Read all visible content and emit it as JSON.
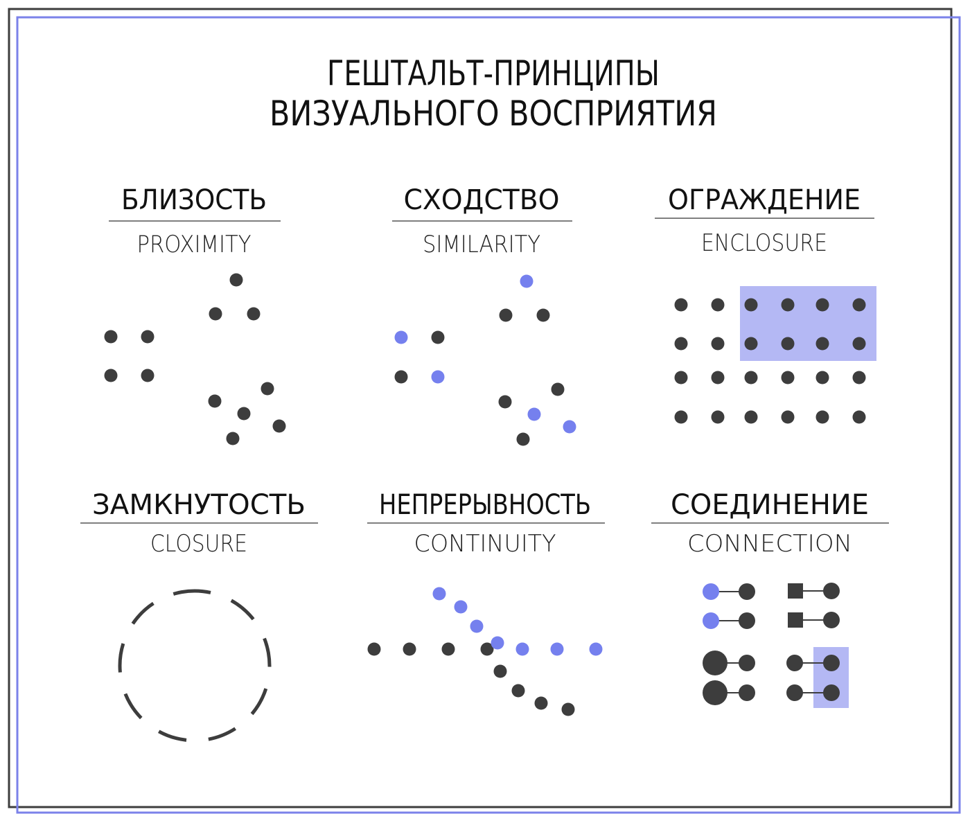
{
  "title": {
    "line1": "ГЕШТАЛЬТ-ПРИНЦИПЫ",
    "line2": "ВИЗУАЛЬНОГО ВОСПРИЯТИЯ"
  },
  "principles": [
    {
      "name": "БЛИЗОСТЬ",
      "english": "PROXIMITY"
    },
    {
      "name": "СХОДСТВО",
      "english": "SIMILARITY"
    },
    {
      "name": "ОГРАЖДЕНИЕ",
      "english": "ENCLOSURE"
    },
    {
      "name": "ЗАМКНУТОСТЬ",
      "english": "CLOSURE"
    },
    {
      "name": "НЕПРЕРЫВНОСТЬ",
      "english": "CONTINUITY"
    },
    {
      "name": "СОЕДИНЕНИЕ",
      "english": "CONNECTION"
    }
  ],
  "colors": {
    "dark_dot": "#3d3d3d",
    "accent_dot": "#7580ee",
    "enclosure_fill": "#b4b8f4",
    "outer_frame": "#3d3d3d",
    "inner_frame": "#7b82ea"
  }
}
